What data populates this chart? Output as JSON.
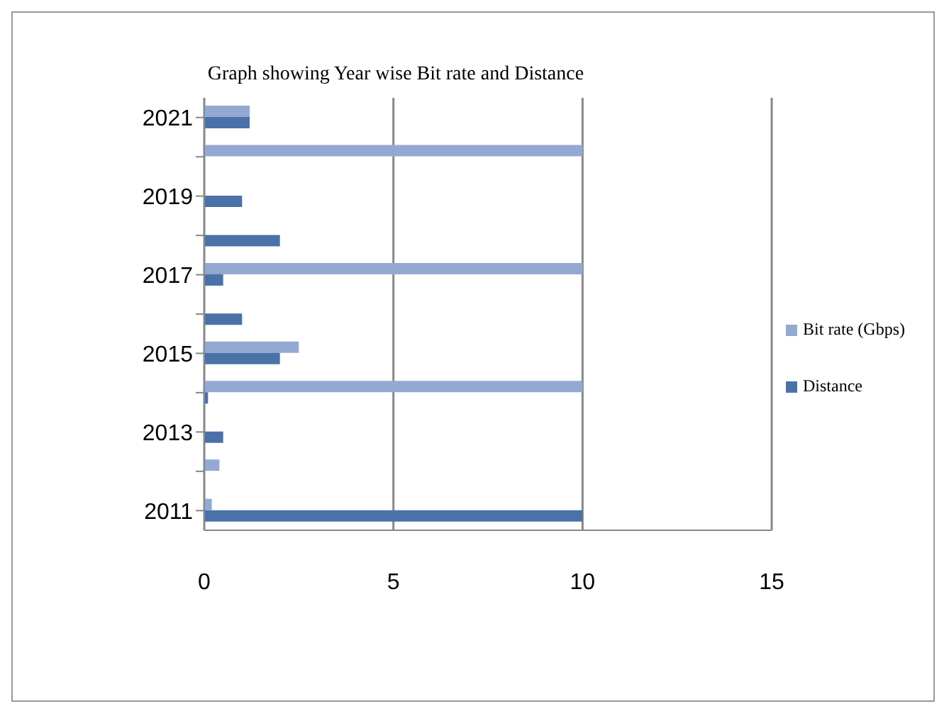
{
  "chart_data": {
    "type": "bar",
    "orientation": "horizontal",
    "title": "Graph showing Year wise Bit rate and  Distance",
    "categories": [
      "2021",
      null,
      "2019",
      null,
      "2017",
      null,
      "2015",
      null,
      "2013",
      null,
      "2011"
    ],
    "series": [
      {
        "name": "Bit rate (Gbps)",
        "color": "#93a9d1",
        "values": [
          1.2,
          10,
          0,
          0,
          10,
          0,
          2.5,
          10,
          0,
          0.4,
          0.2
        ]
      },
      {
        "name": "Distance",
        "color": "#4a72a8",
        "values": [
          1.2,
          0,
          1,
          2,
          0.5,
          1,
          2,
          0.1,
          0.5,
          0,
          10
        ]
      }
    ],
    "xlim": [
      0,
      15
    ],
    "xticks": [
      0,
      5,
      10,
      15
    ],
    "grid": "x",
    "legend": "right"
  }
}
